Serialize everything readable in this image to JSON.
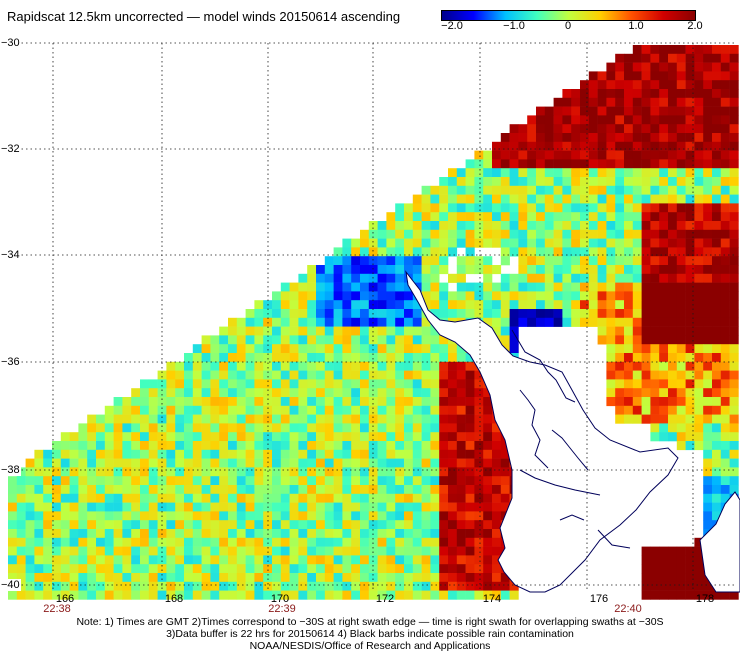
{
  "title": "Rapidscat 12.5km uncorrected — model winds 20150614 ascending",
  "colorbar": {
    "ticks": [
      "−2.0",
      "−1.0",
      "0",
      "1.0",
      "2.0"
    ],
    "min": -2.0,
    "max": 2.0,
    "colors": [
      "#00008b",
      "#0000ff",
      "#00bfff",
      "#40ffc0",
      "#c0ff40",
      "#ffd000",
      "#ff5000",
      "#d00000",
      "#8b0000"
    ]
  },
  "lat_labels": [
    "−30",
    "−32",
    "−34",
    "−36",
    "−38",
    "−40"
  ],
  "lon_labels": [
    "166",
    "168",
    "170",
    "172",
    "174",
    "176",
    "178"
  ],
  "time_labels": [
    "22:38",
    "22:39",
    "22:40"
  ],
  "notes": [
    "Note: 1) Times are GMT 2)Times correspond to −30S at right swath edge — time is right swath for overlapping swaths at −30S",
    "3)Data buffer is 22 hrs for 20150614 4) Black barbs indicate possible rain contamination",
    "NOAA/NESDIS/Office of Research and Applications"
  ],
  "colors": {
    "grid": "#1a1a1a",
    "coast": "#00005a",
    "label_dark_red": "#8b1a1a"
  }
}
